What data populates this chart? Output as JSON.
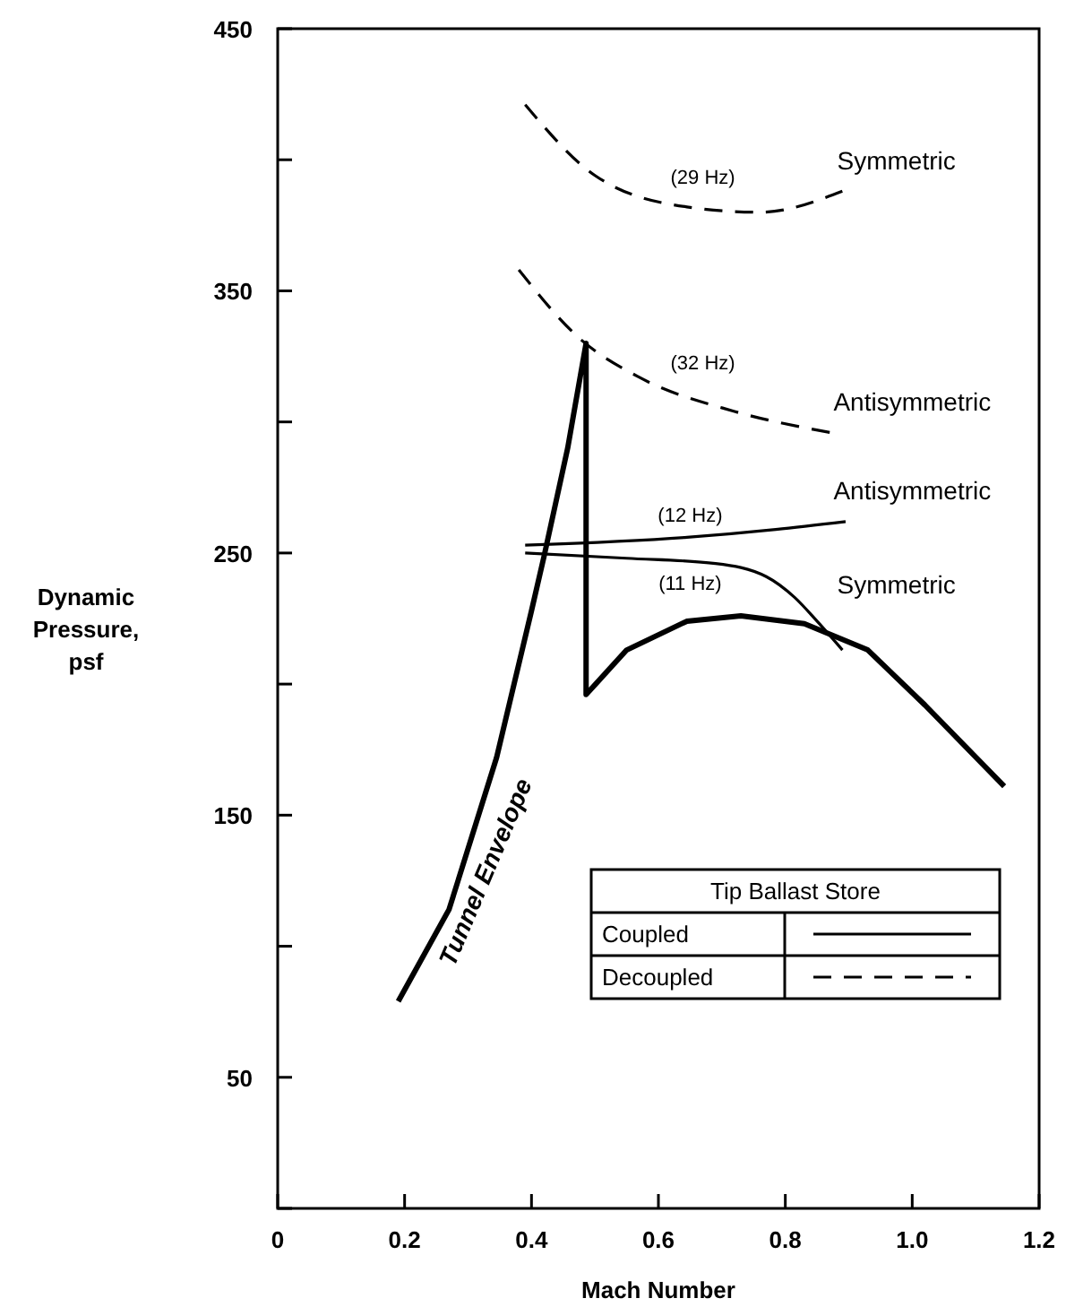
{
  "chart_data": {
    "type": "line",
    "xlabel": "Mach Number",
    "ylabel": "Dynamic Pressure, psf",
    "legend_title": "Tip Ballast Store",
    "xlim": [
      0,
      1.2
    ],
    "ylim": [
      0,
      450
    ],
    "xticks": [
      0,
      {
        "value": 0.2,
        "label": "0.2"
      },
      {
        "value": 0.4,
        "label": "0.4"
      },
      {
        "value": 0.6,
        "label": "0.6"
      },
      {
        "value": 0.8,
        "label": "0.8"
      },
      {
        "value": 1,
        "label": "1.0"
      },
      {
        "value": 1.2,
        "label": "1.2"
      }
    ],
    "yticks": [
      {
        "value": 0,
        "label": null
      },
      50,
      {
        "value": 100,
        "label": null
      },
      150,
      {
        "value": 200,
        "label": null
      },
      250,
      {
        "value": 300,
        "label": null
      },
      350,
      {
        "value": 400,
        "label": null
      },
      450
    ],
    "series": [
      {
        "color": "#000000",
        "line_style": "solid",
        "x": [
          0.19,
          0.27,
          0.345,
          0.4,
          0.42,
          0.457,
          0.486,
          0.486,
          0.55,
          0.645,
          0.73,
          0.83,
          0.93,
          1.02,
          1.145
        ],
        "values": [
          79,
          114,
          172,
          228,
          249,
          290,
          330,
          196,
          213,
          224,
          226,
          223,
          213,
          192,
          161
        ]
      },
      {
        "color": "#000000",
        "line_style": "solid",
        "x": [
          0.39,
          0.645,
          0.785,
          0.895
        ],
        "values": [
          253,
          256,
          259,
          262
        ]
      },
      {
        "color": "#000000",
        "line_style": "solid",
        "x": [
          0.39,
          0.55,
          0.69,
          0.77,
          0.815,
          0.85,
          0.89
        ],
        "values": [
          250,
          248,
          246,
          241,
          233,
          224,
          213
        ]
      },
      {
        "color": "#000000",
        "line_style": "dashed",
        "x": [
          0.39,
          0.5,
          0.645,
          0.76,
          0.89
        ],
        "values": [
          421,
          394,
          382,
          380,
          388
        ]
      },
      {
        "color": "#000000",
        "line_style": "dashed",
        "x": [
          0.38,
          0.475,
          0.57,
          0.72,
          0.87
        ],
        "values": [
          358,
          332,
          317,
          304,
          296
        ]
      }
    ],
    "annotations": [
      "(29 Hz)",
      "Symmetric",
      "(32 Hz)",
      "Antisymmetric",
      "(12 Hz)",
      "Antisymmetric",
      "(11 Hz)",
      "Symmetric",
      "Tunnel Envelope",
      "Coupled",
      "Decoupled"
    ]
  }
}
